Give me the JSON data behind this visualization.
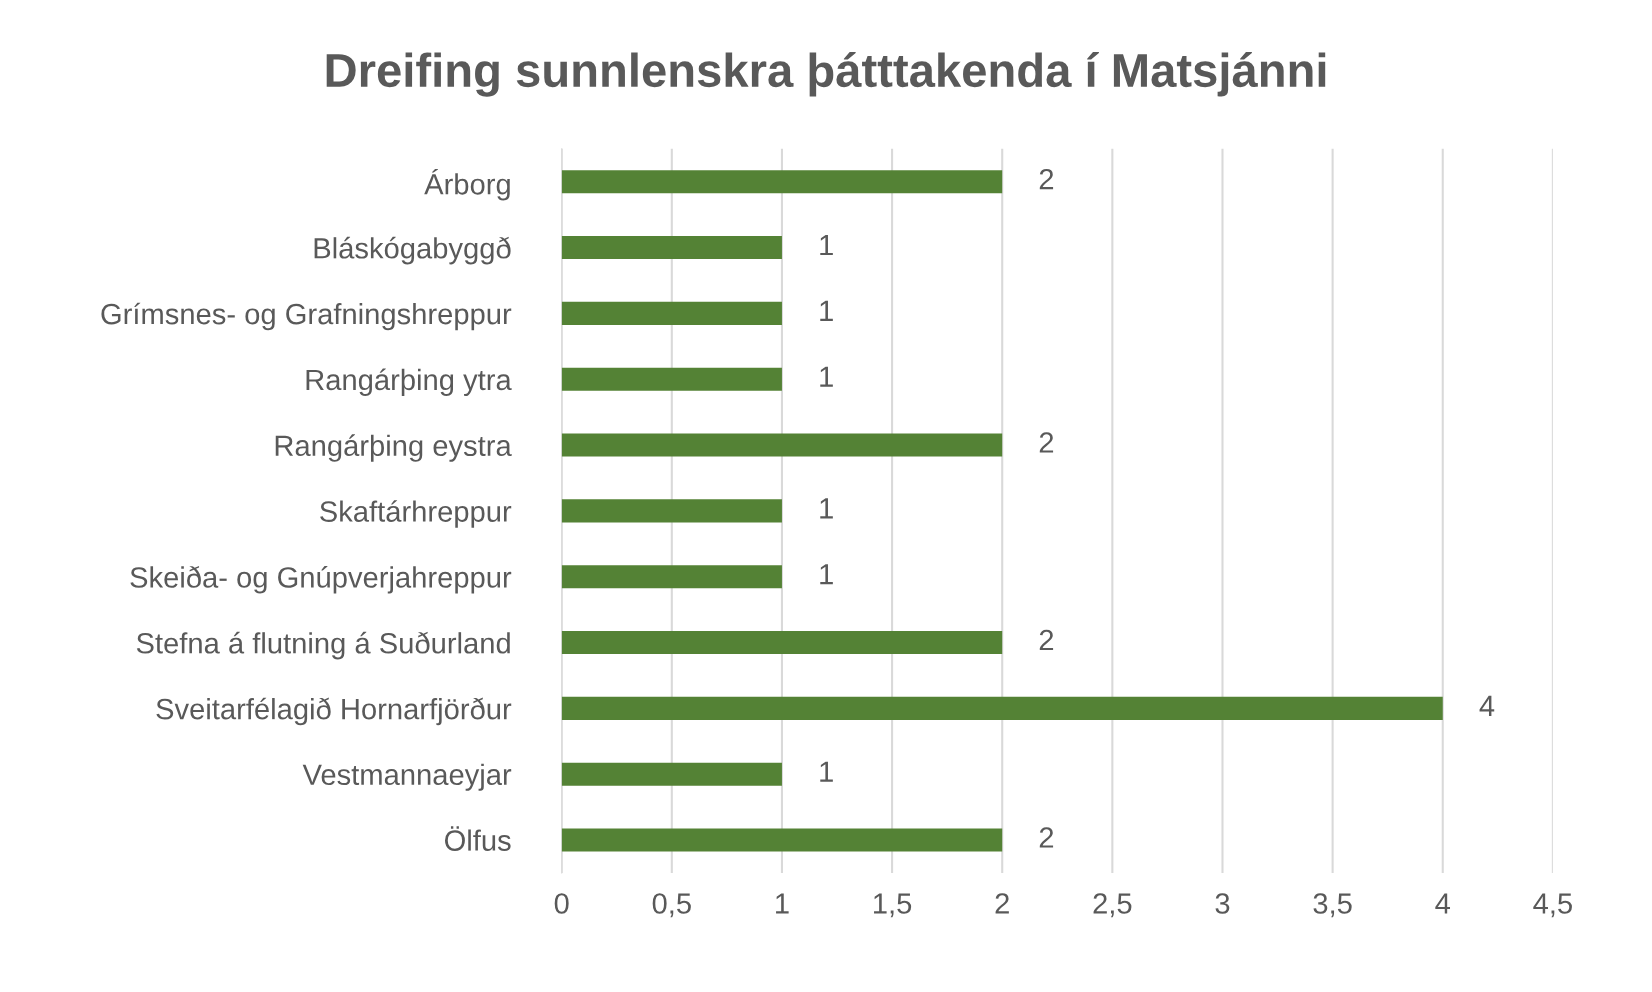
{
  "chart_data": {
    "type": "bar",
    "orientation": "horizontal",
    "title": "Dreifing sunnlenskra þátttakenda í Matsjánni",
    "categories": [
      "Árborg",
      "Bláskógabyggð",
      "Grímsnes- og Grafningshreppur",
      "Rangárþing ytra",
      "Rangárþing eystra",
      "Skaftárhreppur",
      "Skeiða- og Gnúpverjahreppur",
      "Stefna á flutning á Suðurland",
      "Sveitarfélagið Hornarfjörður",
      "Vestmannaeyjar",
      "Ölfus"
    ],
    "values": [
      2,
      1,
      1,
      1,
      2,
      1,
      1,
      2,
      4,
      1,
      2
    ],
    "color": "#548235",
    "xlim": [
      0,
      4.5
    ],
    "xticks": [
      0,
      {
        "value": 0.5,
        "label": "0,5"
      },
      1,
      {
        "value": 1.5,
        "label": "1,5"
      },
      2,
      {
        "value": 2.5,
        "label": "2,5"
      },
      3,
      {
        "value": 3.5,
        "label": "3,5"
      },
      4,
      {
        "value": 4.5,
        "label": "4,5"
      }
    ],
    "grid": "x",
    "data_labels": true
  }
}
